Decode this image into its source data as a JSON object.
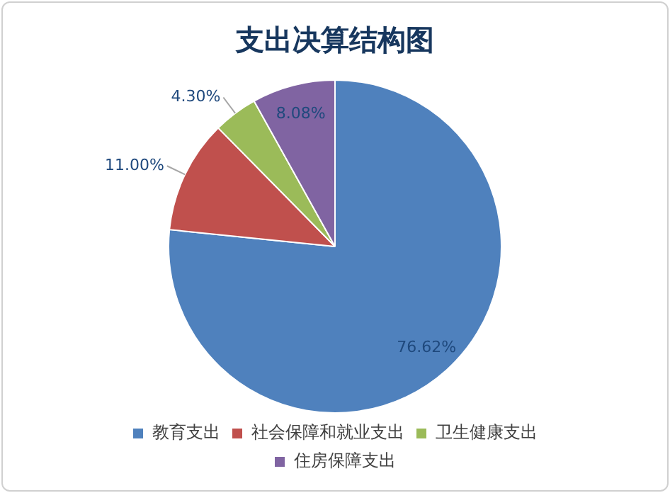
{
  "chart_data": {
    "type": "pie",
    "title": "支出决算结构图",
    "categories": [
      "教育支出",
      "社会保障和就业支出",
      "卫生健康支出",
      "住房保障支出"
    ],
    "values": [
      76.62,
      11.0,
      4.3,
      8.08
    ],
    "value_labels": [
      "76.62%",
      "11.00%",
      "4.30%",
      "8.08%"
    ],
    "colors": [
      "#4f81bd",
      "#c0504d",
      "#9bbb59",
      "#8064a2"
    ],
    "legend": "bottom"
  }
}
